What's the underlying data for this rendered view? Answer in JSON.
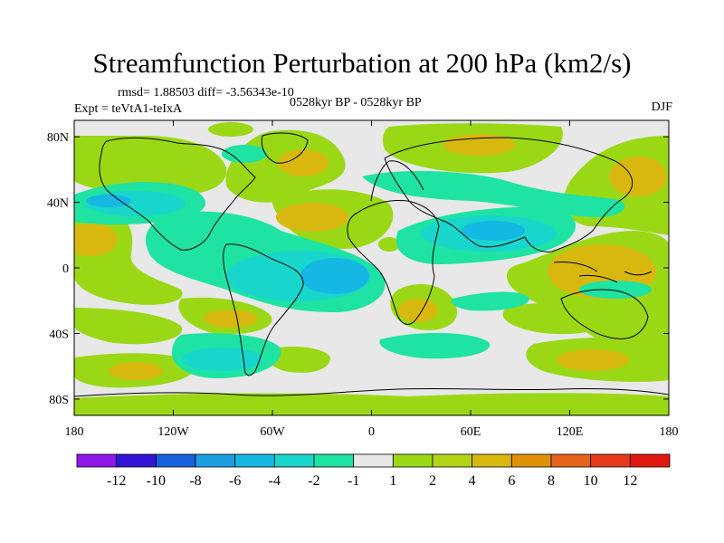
{
  "title": "Streamfunction Perturbation at 200 hPa (km2/s)",
  "stats_line": "rmsd= 1.88503 diff= -3.56343e-10",
  "experiment_line": "Expt = teVtA1-teIxA",
  "period_line": "0528kyr BP - 0528kyr BP",
  "season": "DJF",
  "y_ticks": [
    "80N",
    "40N",
    "0",
    "40S",
    "80S"
  ],
  "x_ticks": [
    "180",
    "120W",
    "60W",
    "0",
    "60E",
    "120E",
    "180"
  ],
  "colorbar": {
    "labels": [
      "-12",
      "-10",
      "-8",
      "-6",
      "-4",
      "-2",
      "-1",
      "1",
      "2",
      "4",
      "6",
      "8",
      "10",
      "12"
    ],
    "colors": [
      "#8f17e8",
      "#3214d6",
      "#1660de",
      "#1b9fe1",
      "#14b8e2",
      "#18d6cc",
      "#1ee3a2",
      "#e8e8e8",
      "#9ad816",
      "#b2d415",
      "#d8b80e",
      "#e19107",
      "#e5631a",
      "#e63a1a",
      "#e01810"
    ]
  },
  "palette": {
    "neutral": "#e8e8e8",
    "neg1": "#1ee3a2",
    "neg2": "#18d6cc",
    "neg3": "#14b8e2",
    "pos1": "#9ad816",
    "pos2": "#d8b80e"
  }
}
